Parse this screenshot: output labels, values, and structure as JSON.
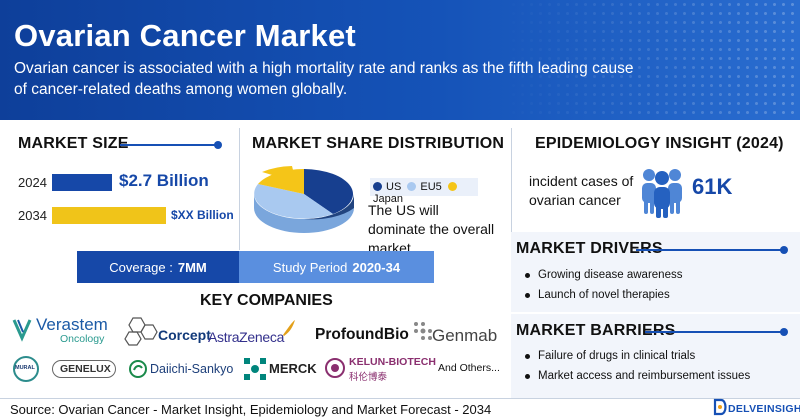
{
  "header": {
    "title": "Ovarian Cancer Market",
    "subtitle": "Ovarian cancer is associated with a high mortality rate and ranks as the fifth leading cause of cancer-related deaths among women globally."
  },
  "market_size": {
    "title": "MARKET SIZE",
    "rows": [
      {
        "year": "2024",
        "value": "$2.7 Billion",
        "color": "#1648a8"
      },
      {
        "year": "2034",
        "value": "$XX Billion",
        "color": "#f0c419"
      }
    ]
  },
  "market_share": {
    "title": "MARKET SHARE DISTRIBUTION",
    "legend": [
      {
        "label": "US",
        "color": "#173f8f"
      },
      {
        "label": "EU5",
        "color": "#a9c9f0"
      },
      {
        "label": "Japan",
        "color": "#f5c518"
      }
    ],
    "note": "The US will dominate the overall market."
  },
  "epidemiology": {
    "title": "EPIDEMIOLOGY INSIGHT (2024)",
    "label": "incident cases of ovarian cancer",
    "value": "61K"
  },
  "coverage": {
    "label": "Coverage :",
    "value": "7MM"
  },
  "study_period": {
    "label": "Study Period",
    "value": "2020-34"
  },
  "key_companies": {
    "title": "KEY COMPANIES",
    "row1": [
      "Verastem",
      "Oncology",
      "Corcept",
      "AstraZeneca",
      "ProfoundBio",
      "Genmab"
    ],
    "row2": [
      "MURAL",
      "GENELUX",
      "Daiichi-Sankyo",
      "MERCK",
      "KELUN-BIOTECH",
      "科伦博泰",
      "And Others..."
    ]
  },
  "drivers": {
    "title": "MARKET DRIVERS",
    "items": [
      "Growing disease awareness",
      "Launch of novel therapies"
    ]
  },
  "barriers": {
    "title": "MARKET BARRIERS",
    "items": [
      "Failure of drugs in clinical trials",
      "Market access and reimbursement issues"
    ]
  },
  "footer": {
    "source": "Source: Ovarian Cancer - Market Insight, Epidemiology and Market Forecast - 2034",
    "brand": "DELVEINSIGHT"
  }
}
